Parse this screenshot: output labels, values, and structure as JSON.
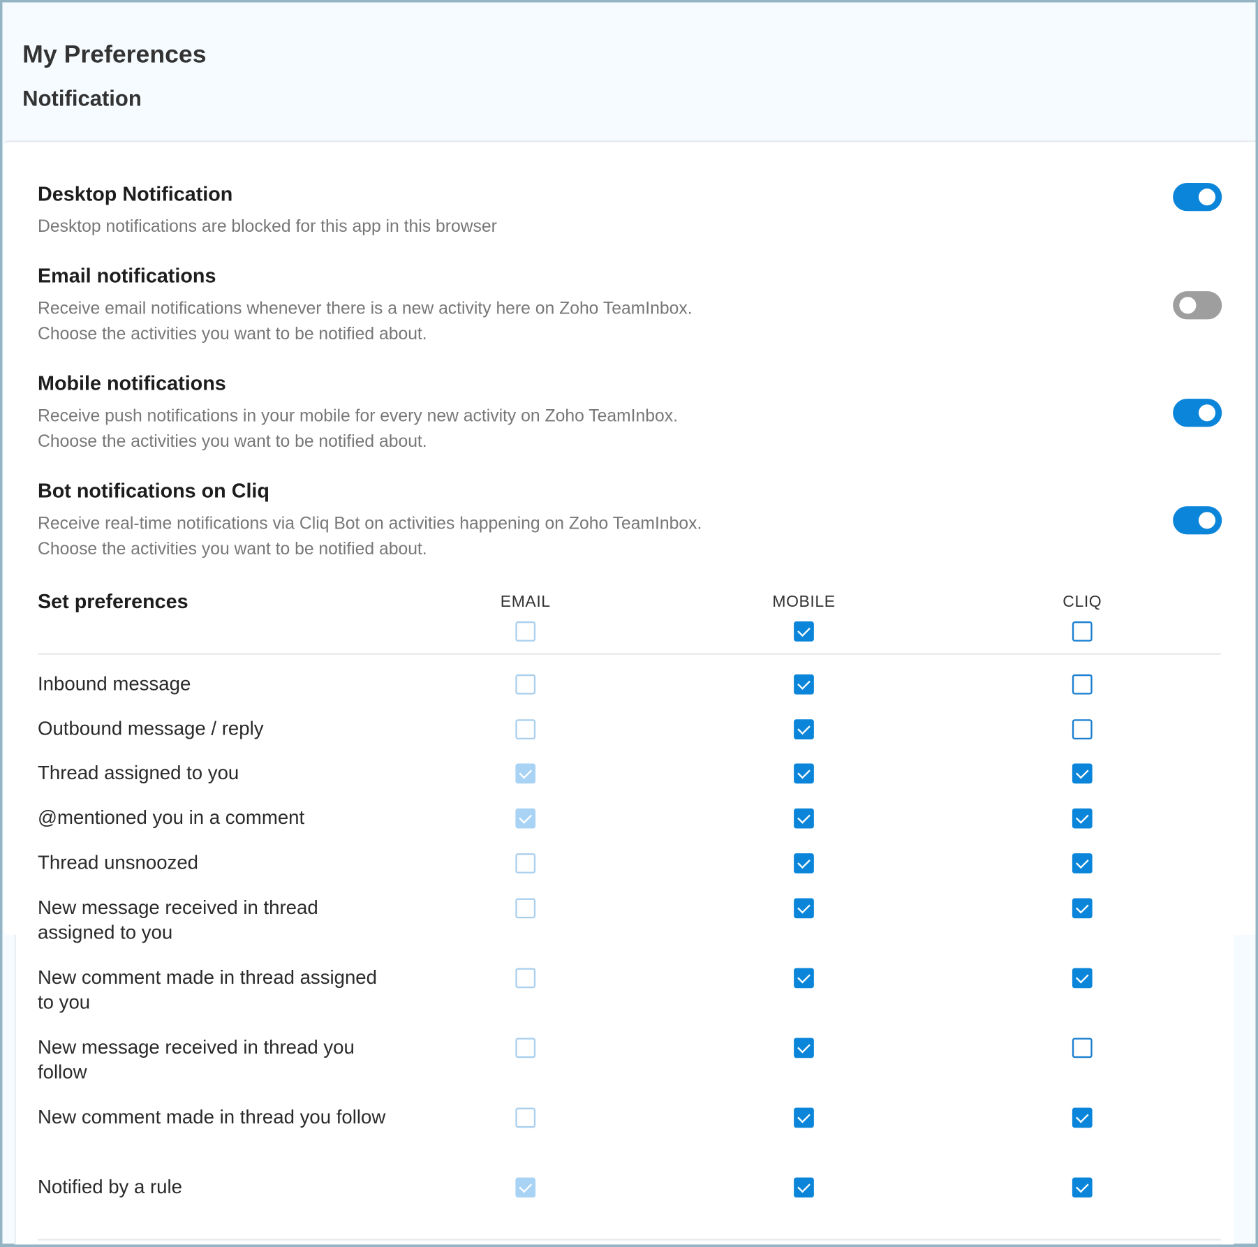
{
  "header": {
    "title": "My Preferences",
    "subtitle": "Notification"
  },
  "sections": [
    {
      "title": "Desktop Notification",
      "desc": [
        "Desktop notifications are blocked for this app in this browser"
      ],
      "enabled": true
    },
    {
      "title": "Email notifications",
      "desc": [
        "Receive email notifications whenever there is a new activity here on Zoho TeamInbox.",
        "Choose the activities you want to be notified about."
      ],
      "enabled": false
    },
    {
      "title": "Mobile notifications",
      "desc": [
        "Receive push notifications in your mobile for every new activity on Zoho TeamInbox.",
        "Choose the activities you want to be notified about."
      ],
      "enabled": true
    },
    {
      "title": "Bot notifications on Cliq",
      "desc": [
        "Receive real-time notifications via Cliq Bot on activities happening on Zoho TeamInbox.",
        "Choose the activities you want to be notified about."
      ],
      "enabled": true
    }
  ],
  "preferences": {
    "title": "Set preferences",
    "columns": [
      "EMAIL",
      "MOBILE",
      "CLIQ"
    ],
    "select_all": [
      "off",
      "on",
      "off"
    ],
    "rows": [
      {
        "label": "Inbound message",
        "states": [
          "off",
          "on",
          "off"
        ]
      },
      {
        "label": "Outbound message / reply",
        "states": [
          "off",
          "on",
          "off"
        ]
      },
      {
        "label": "Thread assigned to you",
        "states": [
          "disabled-on",
          "on",
          "on"
        ]
      },
      {
        "label": "@mentioned you in a comment",
        "states": [
          "disabled-on",
          "on",
          "on"
        ]
      },
      {
        "label": "Thread unsnoozed",
        "states": [
          "off",
          "on",
          "on"
        ]
      },
      {
        "label": "New message received in thread assigned to you",
        "states": [
          "off",
          "on",
          "on"
        ]
      },
      {
        "label": "New comment made in thread assigned to you",
        "states": [
          "off",
          "on",
          "on"
        ]
      },
      {
        "label": "New message received in thread you follow",
        "states": [
          "off",
          "on",
          "off"
        ]
      },
      {
        "label": "New comment made in thread you follow",
        "states": [
          "off",
          "on",
          "on"
        ]
      },
      {
        "label": "Notified by a rule",
        "states": [
          "disabled-on",
          "on",
          "on"
        ]
      }
    ]
  },
  "colors": {
    "accent": "#0a85d9",
    "toggle_off": "#9e9e9e",
    "disabled_check": "#a9d3f5"
  }
}
